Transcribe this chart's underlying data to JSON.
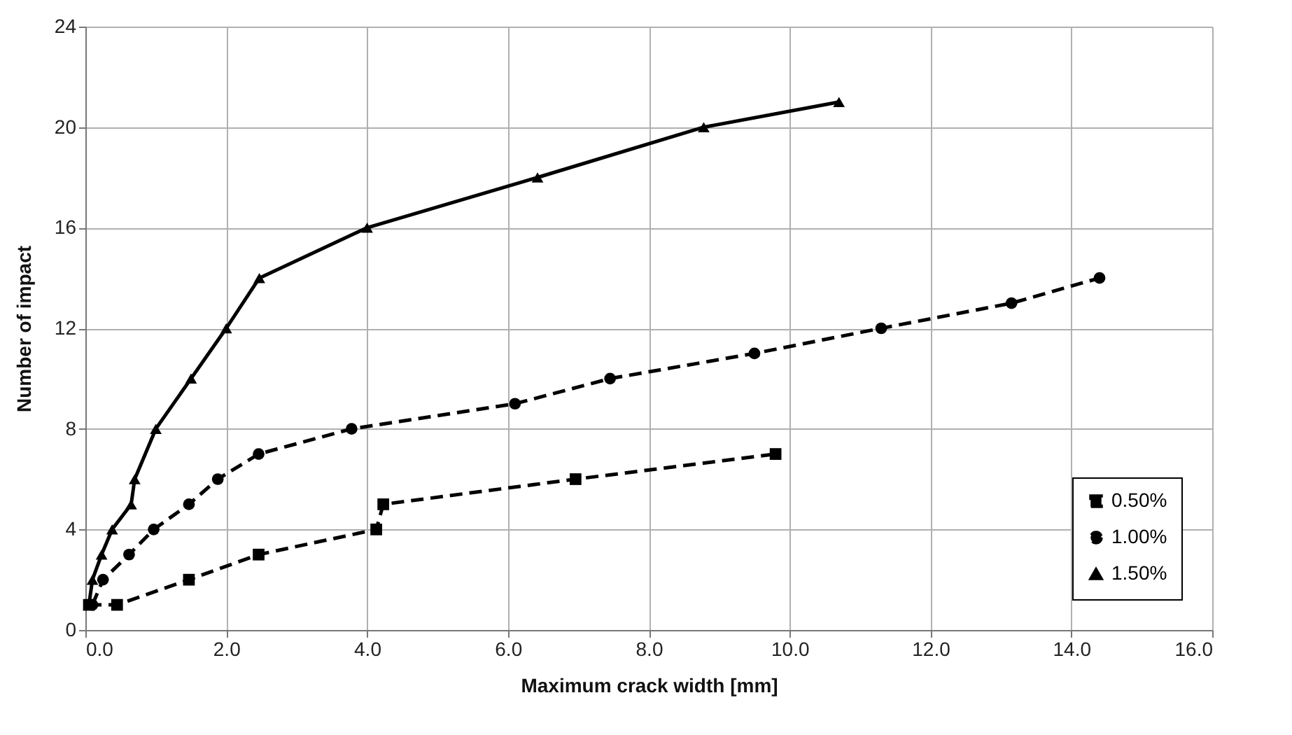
{
  "chart_data": {
    "type": "line",
    "xlabel": "Maximum crack width [mm]",
    "ylabel": "Number of impact",
    "xlim": [
      0,
      16
    ],
    "xticks": [
      {
        "value": 0,
        "label": "0.0"
      },
      {
        "value": 2,
        "label": "2.0"
      },
      {
        "value": 4,
        "label": "4.0"
      },
      {
        "value": 6,
        "label": "6.0"
      },
      {
        "value": 8,
        "label": "8.0"
      },
      {
        "value": 10,
        "label": "10.0"
      },
      {
        "value": 12,
        "label": "12.0"
      },
      {
        "value": 14,
        "label": "14.0"
      },
      {
        "value": 16,
        "label": "16.0"
      }
    ],
    "ylim": [
      0,
      24
    ],
    "yticks": [
      0,
      4,
      8,
      12,
      16,
      20,
      24
    ],
    "grid": true,
    "legend": "bottom right",
    "series": [
      {
        "name": "0.50%",
        "color": "#000000",
        "marker": "square",
        "line_style": "dashed",
        "x": [
          0.05,
          0.45,
          1.47,
          2.46,
          4.13,
          4.23,
          6.96,
          9.8
        ],
        "values": [
          1,
          1,
          2,
          3,
          4,
          5,
          6,
          7
        ]
      },
      {
        "name": "1.00%",
        "color": "#000000",
        "marker": "circle",
        "line_style": "dashed",
        "x": [
          0.1,
          0.25,
          0.62,
          0.97,
          1.47,
          1.88,
          2.46,
          3.78,
          6.1,
          7.45,
          9.5,
          11.3,
          13.15,
          14.4
        ],
        "values": [
          1,
          2,
          3,
          4,
          5,
          6,
          7,
          8,
          9,
          10,
          11,
          12,
          13,
          14
        ]
      },
      {
        "name": "1.50%",
        "color": "#000000",
        "marker": "triangle",
        "line_style": "solid",
        "x": [
          0.05,
          0.1,
          0.23,
          0.38,
          0.65,
          0.7,
          1.0,
          1.5,
          2.0,
          2.47,
          4.0,
          6.42,
          8.78,
          10.7
        ],
        "values": [
          1,
          2,
          3,
          4,
          5,
          6,
          8,
          10,
          12,
          14,
          16,
          18,
          20,
          21
        ]
      }
    ]
  }
}
